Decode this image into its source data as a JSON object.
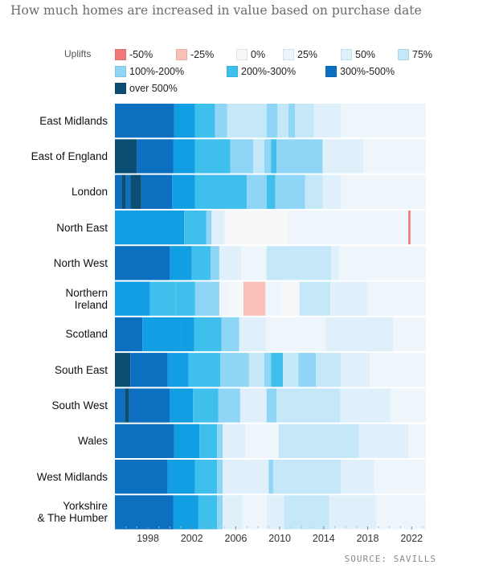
{
  "chart_data": {
    "type": "heatmap",
    "title": "How much homes are increased in value based on purchase date",
    "source": "SOURCE: SAVILLS",
    "legend_title": "Uplifts",
    "x_ticks": [
      1998,
      2002,
      2006,
      2010,
      2014,
      2018,
      2022
    ],
    "xlim": [
      1995,
      2023.3
    ],
    "bins": [
      {
        "key": "n50",
        "label": "-50%",
        "color": "#f0787a"
      },
      {
        "key": "n25",
        "label": "-25%",
        "color": "#f8c0b6"
      },
      {
        "key": "p0",
        "label": "0%",
        "color": "#f5f7f8"
      },
      {
        "key": "p25",
        "label": "25%",
        "color": "#eef6fb"
      },
      {
        "key": "p50",
        "label": "50%",
        "color": "#dff0fa"
      },
      {
        "key": "p75",
        "label": "75%",
        "color": "#c4e8f8"
      },
      {
        "key": "p100",
        "label": "100%-200%",
        "color": "#8fd5f5"
      },
      {
        "key": "p200",
        "label": "200%-300%",
        "color": "#3fc0ec"
      },
      {
        "key": "p300",
        "label": "300%-500%",
        "color": "#0c6fbf"
      },
      {
        "key": "p500",
        "label": "over 500%",
        "color": "#0b4e74"
      }
    ],
    "regions": [
      {
        "name": "East Midlands",
        "segments": [
          [
            1995,
            2000.4,
            "p300"
          ],
          [
            2000.4,
            2002.3,
            "p200b"
          ],
          [
            2002.3,
            2004.1,
            "p200"
          ],
          [
            2004.1,
            2005.2,
            "p100"
          ],
          [
            2005.2,
            2008.8,
            "p75"
          ],
          [
            2008.8,
            2009.8,
            "p100"
          ],
          [
            2009.8,
            2010.8,
            "p75"
          ],
          [
            2010.8,
            2011.4,
            "p100"
          ],
          [
            2011.4,
            2013.1,
            "p75"
          ],
          [
            2013.1,
            2015.6,
            "p50"
          ],
          [
            2015.6,
            2020.5,
            "p25"
          ],
          [
            2020.5,
            2023.3,
            "p25"
          ]
        ]
      },
      {
        "name": "East of England",
        "segments": [
          [
            1995,
            1997,
            "p500"
          ],
          [
            1997,
            2000.3,
            "p300"
          ],
          [
            2000.3,
            2002.3,
            "p200b"
          ],
          [
            2002.3,
            2005.5,
            "p200"
          ],
          [
            2005.5,
            2007.6,
            "p100"
          ],
          [
            2007.6,
            2008.6,
            "p75"
          ],
          [
            2008.6,
            2009.2,
            "p100"
          ],
          [
            2009.2,
            2009.7,
            "p200"
          ],
          [
            2009.7,
            2013.9,
            "p100"
          ],
          [
            2013.9,
            2015.6,
            "p50"
          ],
          [
            2015.6,
            2017.6,
            "p50"
          ],
          [
            2017.6,
            2023.3,
            "p25"
          ]
        ]
      },
      {
        "name": "London",
        "segments": [
          [
            1995,
            1995.6,
            "p300"
          ],
          [
            1995.6,
            1996,
            "p500"
          ],
          [
            1996,
            1996.4,
            "p300"
          ],
          [
            1996.4,
            1997.4,
            "p500"
          ],
          [
            1997.4,
            2000.2,
            "p300"
          ],
          [
            2000.2,
            2002.3,
            "p200b"
          ],
          [
            2002.3,
            2007,
            "p200"
          ],
          [
            2007,
            2008.8,
            "p100"
          ],
          [
            2008.8,
            2009.6,
            "p200"
          ],
          [
            2009.6,
            2012.3,
            "p100"
          ],
          [
            2012.3,
            2013.9,
            "p75"
          ],
          [
            2013.9,
            2015.6,
            "p50"
          ],
          [
            2015.6,
            2023.3,
            "p25"
          ]
        ]
      },
      {
        "name": "North East",
        "segments": [
          [
            1995,
            2001.3,
            "p200b"
          ],
          [
            2001.3,
            2003.3,
            "p200"
          ],
          [
            2003.3,
            2003.8,
            "p100"
          ],
          [
            2003.8,
            2005,
            "p50"
          ],
          [
            2005,
            2010.7,
            "p0"
          ],
          [
            2010.7,
            2021.7,
            "p25"
          ],
          [
            2021.7,
            2021.9,
            "n50"
          ],
          [
            2021.9,
            2023.3,
            "p25"
          ]
        ]
      },
      {
        "name": "North West",
        "segments": [
          [
            1995,
            2000,
            "p300"
          ],
          [
            2000,
            2002,
            "p200b"
          ],
          [
            2002,
            2003.7,
            "p200"
          ],
          [
            2003.7,
            2004.5,
            "p100"
          ],
          [
            2004.5,
            2006.5,
            "p50"
          ],
          [
            2006.5,
            2008.8,
            "p25"
          ],
          [
            2008.8,
            2014.7,
            "p75"
          ],
          [
            2014.7,
            2015.4,
            "p50"
          ],
          [
            2015.4,
            2023.3,
            "p25"
          ]
        ]
      },
      {
        "name": "Northern Ireland",
        "segments": [
          [
            1995,
            1998.2,
            "p200b"
          ],
          [
            1998.2,
            2000.5,
            "p200"
          ],
          [
            2000.5,
            2002.3,
            "p200"
          ],
          [
            2002.3,
            2004.5,
            "p100"
          ],
          [
            2004.5,
            2005.5,
            "p25"
          ],
          [
            2005.5,
            2006.7,
            "p0"
          ],
          [
            2006.7,
            2008.7,
            "n25"
          ],
          [
            2008.7,
            2010.1,
            "p25"
          ],
          [
            2010.1,
            2011.8,
            "p0"
          ],
          [
            2011.8,
            2014.6,
            "p75"
          ],
          [
            2014.6,
            2018,
            "p50"
          ],
          [
            2018,
            2023.3,
            "p25"
          ]
        ]
      },
      {
        "name": "Scotland",
        "segments": [
          [
            1995,
            1997.5,
            "p300"
          ],
          [
            1997.5,
            2001,
            "p200b"
          ],
          [
            2001,
            2002.2,
            "p200b"
          ],
          [
            2002.2,
            2004.7,
            "p200"
          ],
          [
            2004.7,
            2006.3,
            "p100"
          ],
          [
            2006.3,
            2008.8,
            "p50"
          ],
          [
            2008.8,
            2011.8,
            "p25"
          ],
          [
            2011.8,
            2014.2,
            "p25"
          ],
          [
            2014.2,
            2020.3,
            "p50"
          ],
          [
            2020.3,
            2023.3,
            "p25"
          ]
        ]
      },
      {
        "name": "South East",
        "segments": [
          [
            1995,
            1996.4,
            "p500"
          ],
          [
            1996.4,
            1999.8,
            "p300"
          ],
          [
            1999.8,
            2001.7,
            "p200b"
          ],
          [
            2001.7,
            2004.6,
            "p200"
          ],
          [
            2004.6,
            2007.2,
            "p100"
          ],
          [
            2007.2,
            2008.6,
            "p75"
          ],
          [
            2008.6,
            2009.2,
            "p100"
          ],
          [
            2009.2,
            2010.3,
            "p200"
          ],
          [
            2010.3,
            2011.7,
            "p75"
          ],
          [
            2011.7,
            2013.3,
            "p100"
          ],
          [
            2013.3,
            2015.6,
            "p75"
          ],
          [
            2015.6,
            2018.2,
            "p50"
          ],
          [
            2018.2,
            2023.3,
            "p25"
          ]
        ]
      },
      {
        "name": "South West",
        "segments": [
          [
            1995,
            1995.9,
            "p300"
          ],
          [
            1995.9,
            1996.3,
            "p500"
          ],
          [
            1996.3,
            2000,
            "p300"
          ],
          [
            2000,
            2002.1,
            "p200b"
          ],
          [
            2002.1,
            2004.4,
            "p200"
          ],
          [
            2004.4,
            2006.4,
            "p100"
          ],
          [
            2006.4,
            2008.8,
            "p50"
          ],
          [
            2008.8,
            2009.7,
            "p100"
          ],
          [
            2009.7,
            2015.5,
            "p75"
          ],
          [
            2015.5,
            2020.1,
            "p50"
          ],
          [
            2020.1,
            2023.3,
            "p25"
          ]
        ]
      },
      {
        "name": "Wales",
        "segments": [
          [
            1995,
            2000.4,
            "p300"
          ],
          [
            2000.4,
            2002.7,
            "p200b"
          ],
          [
            2002.7,
            2004.3,
            "p200"
          ],
          [
            2004.3,
            2004.8,
            "p100"
          ],
          [
            2004.8,
            2006.9,
            "p50"
          ],
          [
            2006.9,
            2009.9,
            "p25"
          ],
          [
            2009.9,
            2017.2,
            "p75"
          ],
          [
            2017.2,
            2021.7,
            "p50"
          ],
          [
            2021.7,
            2023.3,
            "p25"
          ]
        ]
      },
      {
        "name": "West Midlands",
        "segments": [
          [
            1995,
            1999.8,
            "p300"
          ],
          [
            1999.8,
            2002.3,
            "p200b"
          ],
          [
            2002.3,
            2004.3,
            "p200"
          ],
          [
            2004.3,
            2004.8,
            "p100"
          ],
          [
            2004.8,
            2007.3,
            "p50"
          ],
          [
            2007.3,
            2009,
            "p50"
          ],
          [
            2009,
            2009.4,
            "p100"
          ],
          [
            2009.4,
            2015.6,
            "p75"
          ],
          [
            2015.6,
            2018.6,
            "p50"
          ],
          [
            2018.6,
            2023.3,
            "p25"
          ]
        ]
      },
      {
        "name": "Yorkshire & The Humber",
        "segments": [
          [
            1995,
            2000.3,
            "p300"
          ],
          [
            2000.3,
            2002.6,
            "p200b"
          ],
          [
            2002.6,
            2004.3,
            "p200"
          ],
          [
            2004.3,
            2004.8,
            "p100"
          ],
          [
            2004.8,
            2006.6,
            "p50"
          ],
          [
            2006.6,
            2008.8,
            "p25"
          ],
          [
            2008.8,
            2010.4,
            "p50"
          ],
          [
            2010.4,
            2014.5,
            "p75"
          ],
          [
            2014.5,
            2018.8,
            "p50"
          ],
          [
            2018.8,
            2023.3,
            "p25"
          ]
        ]
      }
    ],
    "extra_colors": {
      "p200b": "#119ee3"
    }
  }
}
